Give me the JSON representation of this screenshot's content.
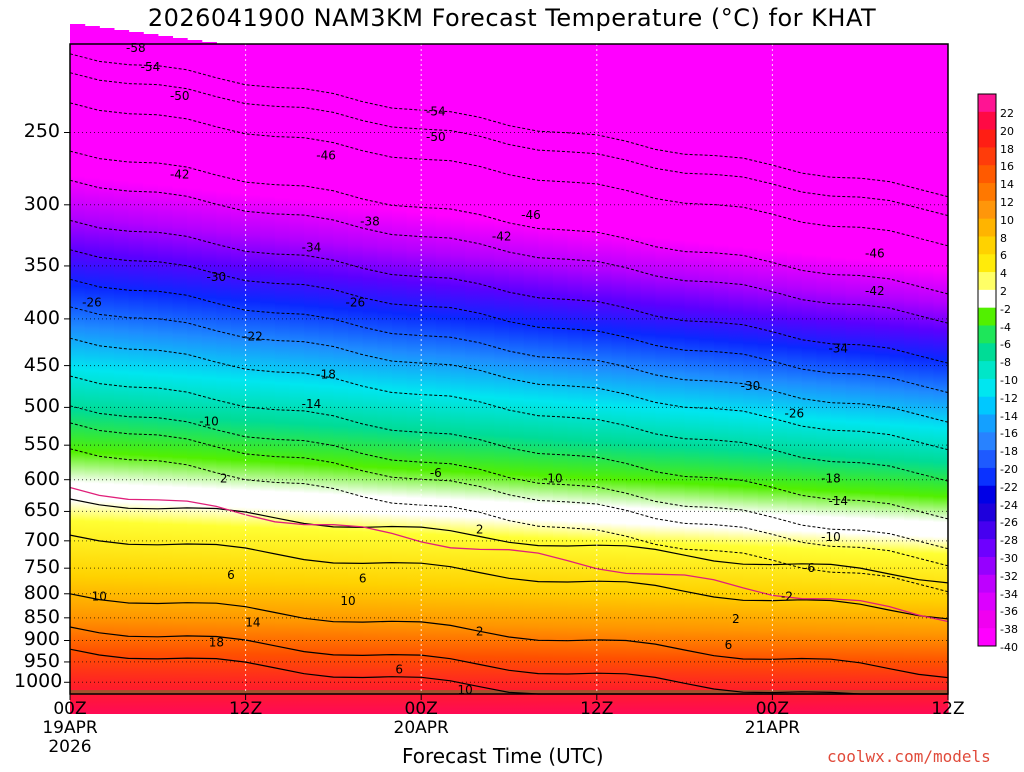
{
  "title": "2026041900 NAM3KM Forecast Temperature (°C) for KHAT",
  "xaxis_title": "Forecast Time (UTC)",
  "credit": "coolwx.com/models",
  "chart_data": {
    "type": "heatmap",
    "x_ticks": [
      {
        "hour": 0,
        "lines": [
          "00Z",
          "19APR",
          "2026"
        ]
      },
      {
        "hour": 12,
        "lines": [
          "12Z"
        ]
      },
      {
        "hour": 24,
        "lines": [
          "00Z",
          "20APR"
        ]
      },
      {
        "hour": 36,
        "lines": [
          "12Z"
        ]
      },
      {
        "hour": 48,
        "lines": [
          "00Z",
          "21APR"
        ]
      },
      {
        "hour": 60,
        "lines": [
          "12Z"
        ]
      }
    ],
    "xlim": [
      0,
      60
    ],
    "y_ticks": [
      250,
      300,
      350,
      400,
      450,
      500,
      550,
      600,
      650,
      700,
      750,
      800,
      850,
      900,
      950,
      1000
    ],
    "ylim_hPa": [
      200,
      1030
    ],
    "y_scale": "log",
    "colorbar_labels": [
      22,
      20,
      18,
      16,
      14,
      12,
      10,
      8,
      6,
      4,
      2,
      -2,
      -4,
      -6,
      -8,
      -10,
      -12,
      -14,
      -16,
      -18,
      -20,
      -22,
      -24,
      -26,
      -28,
      -30,
      -32,
      -34,
      -36,
      -38,
      -40
    ],
    "colorbar_colors": [
      "#ff1493",
      "#ff0a44",
      "#ff1e14",
      "#ff3c0a",
      "#ff5a00",
      "#ff7800",
      "#ff960a",
      "#ffb400",
      "#ffd200",
      "#ffeb0a",
      "#ffff66",
      "#ffffff",
      "#52f000",
      "#1ee65a",
      "#00dc96",
      "#00e6c8",
      "#00e6f0",
      "#00c8ff",
      "#14a0ff",
      "#2882ff",
      "#1e5aff",
      "#0a32ff",
      "#0000e6",
      "#1e00dc",
      "#4600f0",
      "#6e00ff",
      "#9600ff",
      "#be00ff",
      "#dc00ff",
      "#f000f0",
      "#ff00ff"
    ],
    "contour_labels": [
      {
        "hour": 4.5,
        "p": 202,
        "v": "-58"
      },
      {
        "hour": 5.5,
        "p": 212,
        "v": "-54"
      },
      {
        "hour": 7.5,
        "p": 228,
        "v": "-50"
      },
      {
        "hour": 7.5,
        "p": 278,
        "v": "-42"
      },
      {
        "hour": 17.5,
        "p": 265,
        "v": "-46"
      },
      {
        "hour": 20.5,
        "p": 313,
        "v": "-38"
      },
      {
        "hour": 16.5,
        "p": 334,
        "v": "-34"
      },
      {
        "hour": 10,
        "p": 360,
        "v": "-30"
      },
      {
        "hour": 1.5,
        "p": 384,
        "v": "-26"
      },
      {
        "hour": 19.5,
        "p": 384,
        "v": "-26"
      },
      {
        "hour": 12.5,
        "p": 418,
        "v": "-22"
      },
      {
        "hour": 17.5,
        "p": 460,
        "v": "-18"
      },
      {
        "hour": 16.5,
        "p": 496,
        "v": "-14"
      },
      {
        "hour": 9.5,
        "p": 518,
        "v": "-10"
      },
      {
        "hour": 10.5,
        "p": 598,
        "v": "2"
      },
      {
        "hour": 25,
        "p": 590,
        "v": "-6"
      },
      {
        "hour": 33,
        "p": 598,
        "v": "-10"
      },
      {
        "hour": 25,
        "p": 237,
        "v": "-54"
      },
      {
        "hour": 25,
        "p": 253,
        "v": "-50"
      },
      {
        "hour": 31.5,
        "p": 308,
        "v": "-46"
      },
      {
        "hour": 29.5,
        "p": 325,
        "v": "-42"
      },
      {
        "hour": 55,
        "p": 339,
        "v": "-46"
      },
      {
        "hour": 55,
        "p": 373,
        "v": "-42"
      },
      {
        "hour": 52.5,
        "p": 431,
        "v": "-34"
      },
      {
        "hour": 46.5,
        "p": 474,
        "v": "-30"
      },
      {
        "hour": 49.5,
        "p": 508,
        "v": "-26"
      },
      {
        "hour": 52,
        "p": 598,
        "v": "-18"
      },
      {
        "hour": 52.5,
        "p": 633,
        "v": "-14"
      },
      {
        "hour": 52,
        "p": 693,
        "v": "-10"
      },
      {
        "hour": 50.5,
        "p": 750,
        "v": "-6"
      },
      {
        "hour": 49,
        "p": 806,
        "v": "-2"
      },
      {
        "hour": 28,
        "p": 680,
        "v": "2"
      },
      {
        "hour": 28,
        "p": 880,
        "v": "2"
      },
      {
        "hour": 45.5,
        "p": 853,
        "v": "2"
      },
      {
        "hour": 45,
        "p": 910,
        "v": "6"
      },
      {
        "hour": 11,
        "p": 763,
        "v": "6"
      },
      {
        "hour": 20,
        "p": 770,
        "v": "6"
      },
      {
        "hour": 2,
        "p": 805,
        "v": "10"
      },
      {
        "hour": 19,
        "p": 815,
        "v": "10"
      },
      {
        "hour": 12.5,
        "p": 860,
        "v": "14"
      },
      {
        "hour": 10,
        "p": 905,
        "v": "18"
      },
      {
        "hour": 22.5,
        "p": 968,
        "v": "6"
      },
      {
        "hour": 27,
        "p": 1020,
        "v": "10"
      }
    ]
  }
}
